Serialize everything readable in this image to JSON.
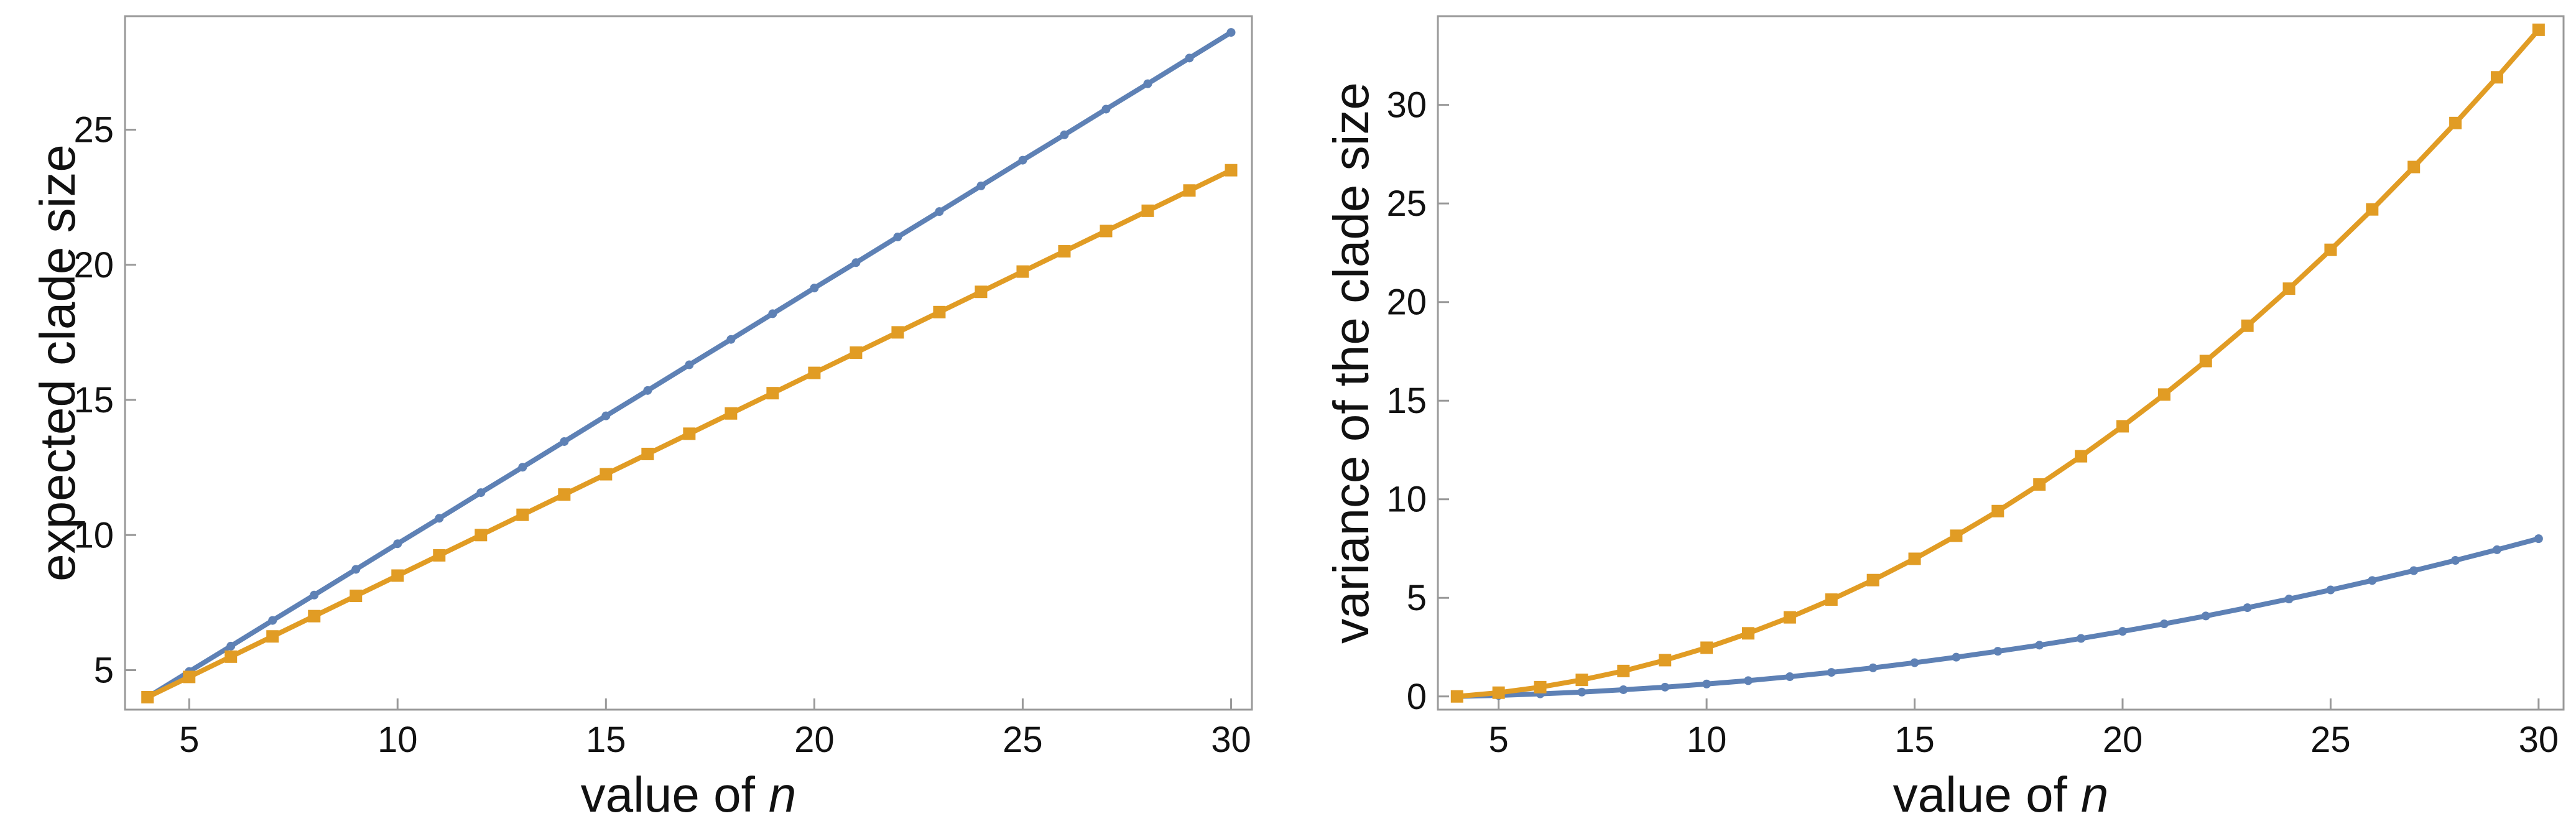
{
  "chart_data": [
    {
      "type": "line",
      "x_label": "value of",
      "x_variable": "n",
      "y_label": "expected clade size",
      "x": [
        4,
        5,
        6,
        7,
        8,
        9,
        10,
        11,
        12,
        13,
        14,
        15,
        16,
        17,
        18,
        19,
        20,
        21,
        22,
        23,
        24,
        25,
        26,
        27,
        28,
        29,
        30
      ],
      "series": [
        {
          "color": "#5e81b5",
          "marker": "circle",
          "values": [
            4,
            4.95,
            5.89,
            6.84,
            7.78,
            8.73,
            9.68,
            10.62,
            11.57,
            12.51,
            13.46,
            14.41,
            15.35,
            16.3,
            17.24,
            18.19,
            19.14,
            20.08,
            21.03,
            21.97,
            22.92,
            23.87,
            24.81,
            25.76,
            26.7,
            27.65,
            28.6
          ]
        },
        {
          "color": "#e19c24",
          "marker": "square",
          "values": [
            4,
            4.75,
            5.5,
            6.25,
            7,
            7.75,
            8.5,
            9.25,
            10,
            10.75,
            11.5,
            12.25,
            13,
            13.75,
            14.5,
            15.25,
            16,
            16.75,
            17.5,
            18.25,
            19,
            19.75,
            20.5,
            21.25,
            22,
            22.75,
            23.5
          ]
        }
      ],
      "xlim": [
        3.46,
        30.5
      ],
      "xticks": [
        5,
        10,
        15,
        20,
        25,
        30
      ],
      "ylim": [
        3.54,
        29.2
      ],
      "yticks": [
        5,
        10,
        15,
        20,
        25
      ]
    },
    {
      "type": "line",
      "x_label": "value of",
      "x_variable": "n",
      "y_label": "variance of the clade size",
      "x": [
        4,
        5,
        6,
        7,
        8,
        9,
        10,
        11,
        12,
        13,
        14,
        15,
        16,
        17,
        18,
        19,
        20,
        21,
        22,
        23,
        24,
        25,
        26,
        27,
        28,
        29,
        30
      ],
      "series": [
        {
          "color": "#5e81b5",
          "marker": "circle",
          "values": [
            0,
            0.05,
            0.13,
            0.22,
            0.34,
            0.47,
            0.63,
            0.8,
            1,
            1.22,
            1.45,
            1.71,
            1.99,
            2.29,
            2.6,
            2.94,
            3.3,
            3.68,
            4.08,
            4.5,
            4.94,
            5.4,
            5.88,
            6.38,
            6.9,
            7.44,
            8
          ]
        },
        {
          "color": "#e19c24",
          "marker": "square",
          "values": [
            0,
            0.19,
            0.47,
            0.84,
            1.29,
            1.84,
            2.47,
            3.2,
            4.01,
            4.91,
            5.9,
            6.98,
            8.15,
            9.4,
            10.75,
            12.18,
            13.7,
            15.31,
            17.01,
            18.8,
            20.68,
            22.65,
            24.7,
            26.85,
            29.08,
            31.4,
            33.81
          ]
        }
      ],
      "xlim": [
        3.54,
        30.6
      ],
      "xticks": [
        5,
        10,
        15,
        20,
        25,
        30
      ],
      "ylim": [
        -0.67,
        34.5
      ],
      "yticks": [
        0,
        5,
        10,
        15,
        20,
        25,
        30
      ]
    }
  ]
}
